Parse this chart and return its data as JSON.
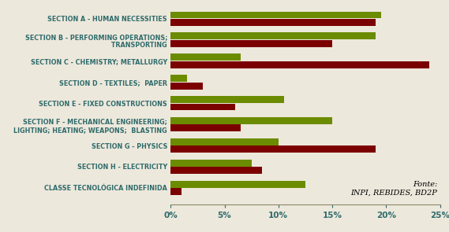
{
  "categories": [
    "SECTION A - HUMAN NECESSITIES",
    "SECTION B - PERFORMING OPERATIONS;\n     TRANSPORTING",
    "SECTION C - CHEMISTRY; METALLURGY",
    "SECTION D - TEXTILES;  PAPER",
    "SECTION E - FIXED CONSTRUCTIONS",
    "SECTION F - MECHANICAL ENGINEERING;\nLIGHTING; HEATING; WEAPONS;  BLASTING",
    "SECTION G - PHYSICS",
    "SECTION H - ELECTRICITY",
    "CLASSE TECNOLÓGICA INDEFINIDA"
  ],
  "dark_red_values": [
    19.0,
    15.0,
    24.0,
    3.0,
    6.0,
    6.5,
    19.0,
    8.5,
    1.0
  ],
  "olive_green_values": [
    19.5,
    19.0,
    6.5,
    1.5,
    10.5,
    15.0,
    10.0,
    7.5,
    12.5
  ],
  "dark_red_color": "#7B0000",
  "olive_green_color": "#6B8C00",
  "xlim": [
    0,
    25
  ],
  "xticks": [
    0,
    5,
    10,
    15,
    20,
    25
  ],
  "xticklabels": [
    "0%",
    "5%",
    "10%",
    "15%",
    "20%",
    "25%"
  ],
  "fonte_text": "Fonte:\nINPI, REBIDES, BD2P",
  "background_color": "#ede8dc",
  "text_color": "#2e6b6b",
  "label_fontsize": 5.8,
  "tick_fontsize": 7.5
}
